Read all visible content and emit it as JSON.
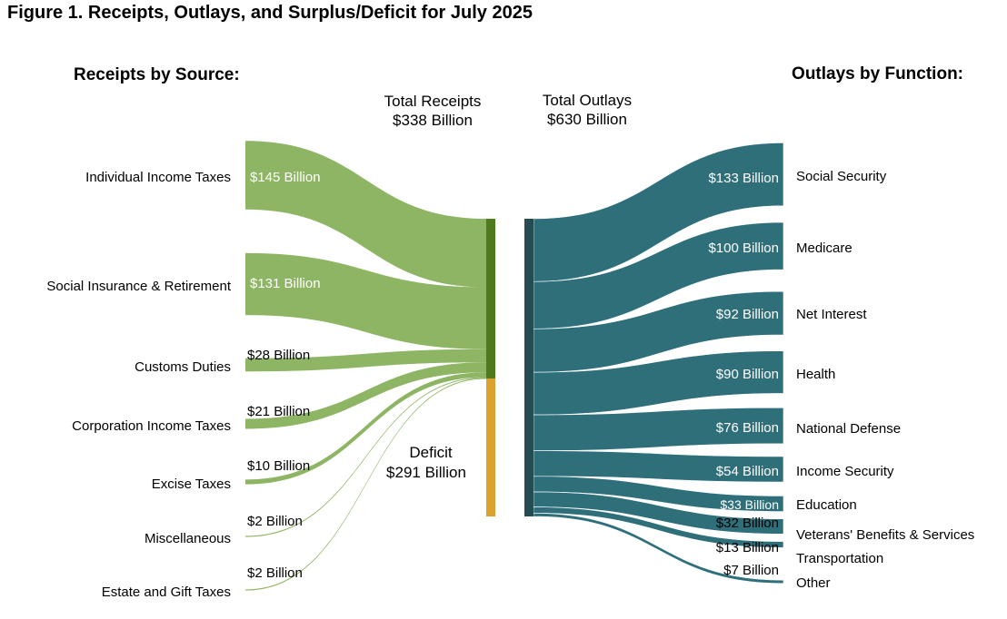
{
  "chart_data": {
    "type": "sankey",
    "title": "Figure 1. Receipts, Outlays, and Surplus/Deficit for July 2025",
    "receipts_header": "Receipts by Source:",
    "outlays_header": "Outlays by Function:",
    "total_receipts": {
      "line1": "Total Receipts",
      "line2": "$338 Billion",
      "value": 338
    },
    "total_outlays": {
      "line1": "Total Outlays",
      "line2": "$630 Billion",
      "value": 630
    },
    "deficit": {
      "line1": "Deficit",
      "line2": "$291 Billion",
      "value": 291
    },
    "receipts": [
      {
        "name": "Individual Income Taxes",
        "value": 145,
        "label": "$145 Billion"
      },
      {
        "name": "Social Insurance & Retirement",
        "value": 131,
        "label": "$131 Billion"
      },
      {
        "name": "Customs Duties",
        "value": 28,
        "label": "$28 Billion"
      },
      {
        "name": "Corporation Income Taxes",
        "value": 21,
        "label": "$21 Billion"
      },
      {
        "name": "Excise Taxes",
        "value": 10,
        "label": "$10 Billion"
      },
      {
        "name": "Miscellaneous",
        "value": 2,
        "label": "$2 Billion"
      },
      {
        "name": "Estate and Gift Taxes",
        "value": 2,
        "label": "$2 Billion"
      }
    ],
    "outlays": [
      {
        "name": "Social Security",
        "value": 133,
        "label": "$133 Billion"
      },
      {
        "name": "Medicare",
        "value": 100,
        "label": "$100 Billion"
      },
      {
        "name": "Net Interest",
        "value": 92,
        "label": "$92 Billion"
      },
      {
        "name": "Health",
        "value": 90,
        "label": "$90 Billion"
      },
      {
        "name": "National Defense",
        "value": 76,
        "label": "$76 Billion"
      },
      {
        "name": "Income Security",
        "value": 54,
        "label": "$54 Billion"
      },
      {
        "name": "Education",
        "value": 33,
        "label": "$33 Billion"
      },
      {
        "name": "Veterans' Benefits & Services",
        "value": 32,
        "label": "$32 Billion"
      },
      {
        "name": "Transportation",
        "value": 13,
        "label": "$13 Billion"
      },
      {
        "name": "Other",
        "value": 7,
        "label": "$7 Billion"
      }
    ],
    "colors": {
      "receipts": "#8db563",
      "receipts_bar": "#4e7a1d",
      "deficit": "#dba22e",
      "outlays": "#2e6f7a",
      "outlays_bar": "#234d52"
    }
  }
}
